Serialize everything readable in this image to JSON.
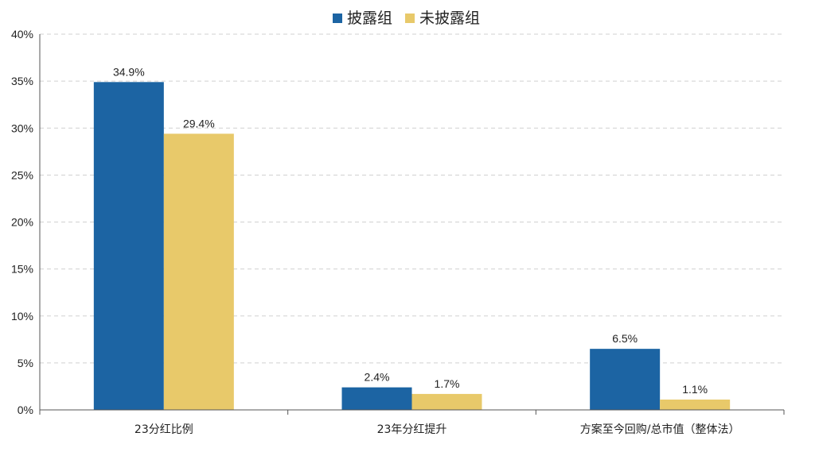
{
  "chart_data": {
    "type": "bar",
    "title": "",
    "xlabel": "",
    "ylabel": "",
    "categories": [
      "23分红比例",
      "23年分红提升",
      "方案至今回购/总市值（整体法）"
    ],
    "series": [
      {
        "name": "披露组",
        "values": [
          34.9,
          2.4,
          6.5
        ],
        "labels": [
          "34.9%",
          "2.4%",
          "6.5%"
        ],
        "color": "#1c64a3"
      },
      {
        "name": "未披露组",
        "values": [
          29.4,
          1.7,
          1.1
        ],
        "labels": [
          "29.4%",
          "1.7%",
          "1.1%"
        ],
        "color": "#e8c96a"
      }
    ],
    "ylim": [
      0,
      40
    ],
    "yticks": [
      0,
      5,
      10,
      15,
      20,
      25,
      30,
      35,
      40
    ],
    "ytick_labels": [
      "0%",
      "5%",
      "10%",
      "15%",
      "20%",
      "25%",
      "30%",
      "35%",
      "40%"
    ],
    "grid": true,
    "legend_position": "top-center"
  }
}
